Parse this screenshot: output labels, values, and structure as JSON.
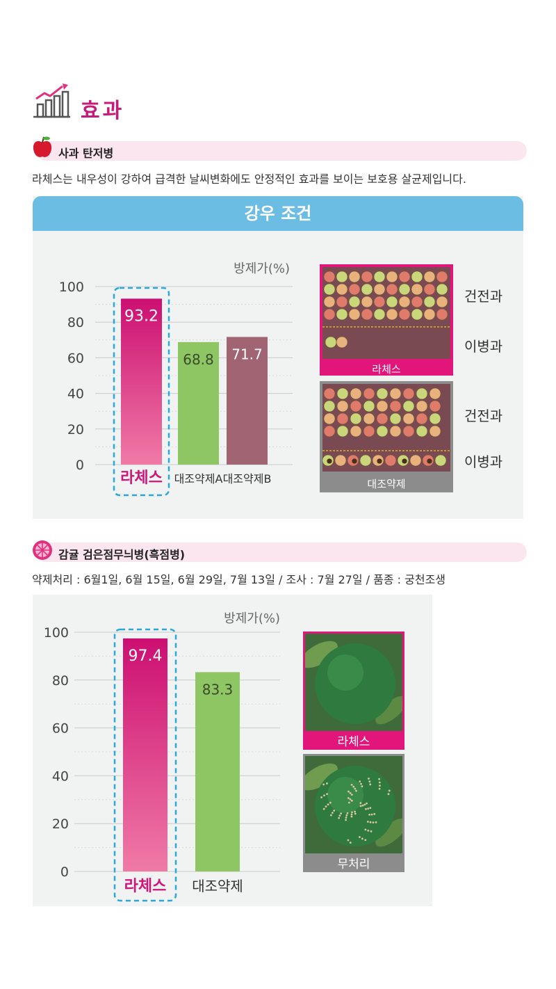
{
  "title": "효과",
  "section1": {
    "label": "사과 탄저병",
    "description": "라체스는 내우성이 강하여 급격한 날씨변화에도 안정적인 효과를 보이는 보호용 살균제입니다.",
    "banner": "강우 조건",
    "photo_top_caption": "라체스",
    "photo_bottom_caption": "대조약제",
    "side_labels": [
      "건전과",
      "이병과",
      "건전과",
      "이병과"
    ]
  },
  "section2": {
    "label": "감귤 검은점무늬병(흑점병)",
    "description": "약제처리 : 6월1일, 6월 15일, 6월 29일, 7월 13일 / 조사 : 7월 27일 / 품종 : 궁천조생",
    "photo_top_caption": "라체스",
    "photo_bottom_caption": "무처리"
  },
  "chart_data": [
    {
      "type": "bar",
      "ylabel": "방제가(%)",
      "ylim": [
        0,
        100
      ],
      "yticks": [
        0,
        20,
        40,
        60,
        80,
        100
      ],
      "categories": [
        "라체스",
        "대조약제A",
        "대조약제B"
      ],
      "values": [
        93.2,
        68.8,
        71.7
      ],
      "colors": [
        "#d81b7a",
        "#8dc663",
        "#a06472"
      ],
      "highlight": "라체스",
      "grid": true
    },
    {
      "type": "bar",
      "ylabel": "방제가(%)",
      "ylim": [
        0,
        100
      ],
      "yticks": [
        0,
        20,
        40,
        60,
        80,
        100
      ],
      "categories": [
        "라체스",
        "대조약제"
      ],
      "values": [
        97.4,
        83.3
      ],
      "colors": [
        "#d81b7a",
        "#8dc663"
      ],
      "highlight": "라체스",
      "grid": true
    }
  ],
  "icons": [
    "growth-chart-icon",
    "apple-icon",
    "citrus-icon"
  ]
}
